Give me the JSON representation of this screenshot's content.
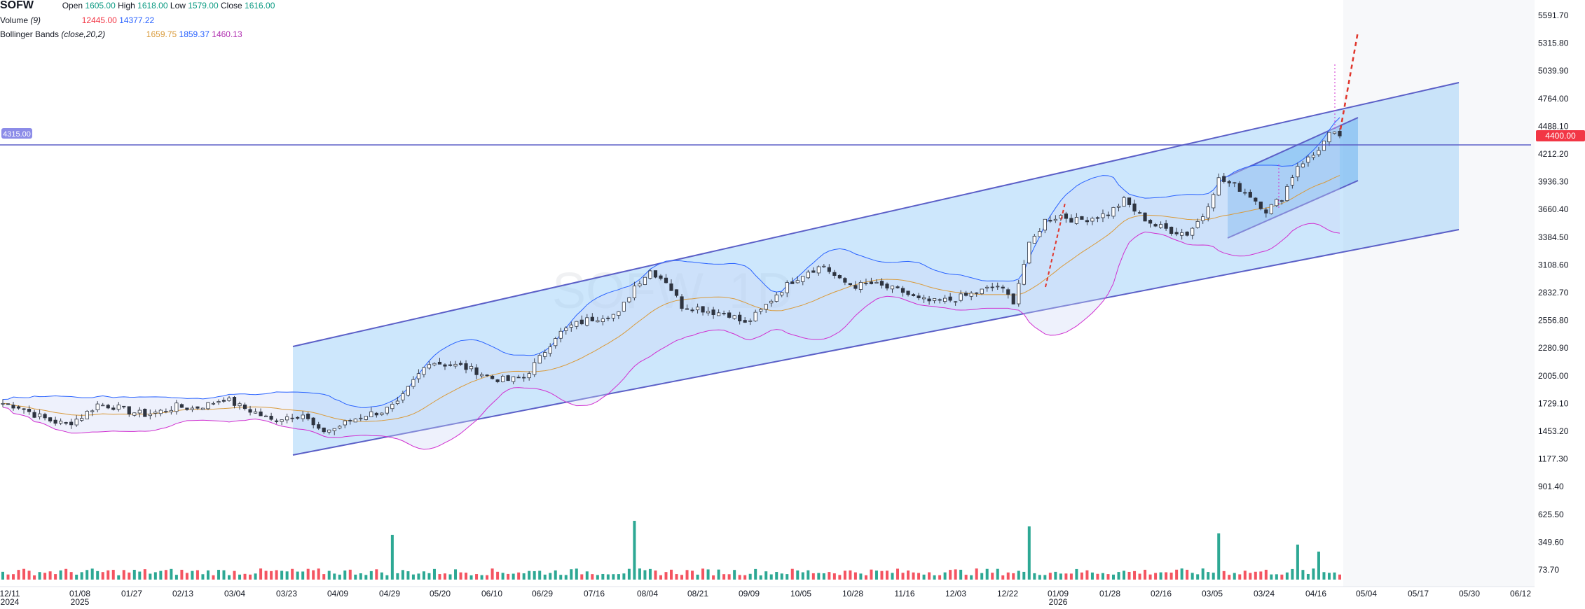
{
  "legend": {
    "symbol": "SOFW",
    "open_label": "Open",
    "open_value": "1605.00",
    "high_label": "High",
    "high_value": "1618.00",
    "low_label": "Low",
    "low_value": "1579.00",
    "close_label": "Close",
    "close_value": "1616.00",
    "volume_label": "Volume",
    "volume_param": "(9)",
    "volume_value": "12445.00",
    "volume_ma": "14377.22",
    "bb_label": "Bollinger Bands",
    "bb_params": "(close,20,2)",
    "bb_basis": "1659.75",
    "bb_upper": "1859.37",
    "bb_lower": "1460.13"
  },
  "watermark": "SOFW, 1D",
  "colors": {
    "up": "#089981",
    "down": "#f23645",
    "channel_fill": "#90caf9",
    "channel_line": "#5b5fc7",
    "bb_upper": "#2962ff",
    "bb_lower": "#d02fd0",
    "bb_basis": "#d99a3a",
    "hline": "#5b5fc7",
    "current_price_badge": "#f23645"
  },
  "horizontal_line": {
    "price_label": "4315.00"
  },
  "current_price": {
    "label": "4400.00"
  },
  "chart_data": {
    "type": "candlestick",
    "y_axis": {
      "ticks": [
        "5591.70",
        "5315.80",
        "5039.90",
        "4764.00",
        "4488.10",
        "4212.20",
        "3936.30",
        "3660.40",
        "3384.50",
        "3108.60",
        "2832.70",
        "2556.80",
        "2280.90",
        "2005.00",
        "1729.10",
        "1453.20",
        "1177.30",
        "901.40",
        "625.50",
        "349.60",
        "73.70"
      ],
      "range": [
        0,
        5700
      ]
    },
    "x_axis": {
      "ticks": [
        {
          "label": "12/11",
          "sub": "2024"
        },
        {
          "label": "01/08",
          "sub": "2025"
        },
        {
          "label": "01/27",
          "sub": ""
        },
        {
          "label": "02/13",
          "sub": ""
        },
        {
          "label": "03/04",
          "sub": ""
        },
        {
          "label": "03/23",
          "sub": ""
        },
        {
          "label": "04/09",
          "sub": ""
        },
        {
          "label": "04/29",
          "sub": ""
        },
        {
          "label": "05/20",
          "sub": ""
        },
        {
          "label": "06/10",
          "sub": ""
        },
        {
          "label": "06/29",
          "sub": ""
        },
        {
          "label": "07/16",
          "sub": ""
        },
        {
          "label": "08/04",
          "sub": ""
        },
        {
          "label": "08/21",
          "sub": ""
        },
        {
          "label": "09/09",
          "sub": ""
        },
        {
          "label": "10/05",
          "sub": ""
        },
        {
          "label": "10/28",
          "sub": ""
        },
        {
          "label": "11/16",
          "sub": ""
        },
        {
          "label": "12/03",
          "sub": ""
        },
        {
          "label": "12/22",
          "sub": ""
        },
        {
          "label": "01/09",
          "sub": "2026"
        },
        {
          "label": "01/28",
          "sub": ""
        },
        {
          "label": "02/16",
          "sub": ""
        },
        {
          "label": "03/05",
          "sub": ""
        },
        {
          "label": "03/24",
          "sub": ""
        },
        {
          "label": "04/16",
          "sub": ""
        },
        {
          "label": "05/04",
          "sub": ""
        },
        {
          "label": "05/17",
          "sub": ""
        },
        {
          "label": "05/30",
          "sub": ""
        },
        {
          "label": "06/12",
          "sub": ""
        }
      ]
    },
    "price_path": [
      [
        0,
        1730
      ],
      [
        3,
        1700
      ],
      [
        6,
        1620
      ],
      [
        9,
        1560
      ],
      [
        12,
        1520
      ],
      [
        15,
        1600
      ],
      [
        18,
        1720
      ],
      [
        21,
        1700
      ],
      [
        24,
        1650
      ],
      [
        27,
        1620
      ],
      [
        30,
        1650
      ],
      [
        33,
        1700
      ],
      [
        36,
        1680
      ],
      [
        39,
        1720
      ],
      [
        42,
        1780
      ],
      [
        45,
        1700
      ],
      [
        48,
        1640
      ],
      [
        51,
        1560
      ],
      [
        54,
        1600
      ],
      [
        57,
        1620
      ],
      [
        60,
        1450
      ],
      [
        63,
        1480
      ],
      [
        66,
        1560
      ],
      [
        69,
        1620
      ],
      [
        72,
        1650
      ],
      [
        75,
        1720
      ],
      [
        78,
        1950
      ],
      [
        81,
        2150
      ],
      [
        84,
        2120
      ],
      [
        87,
        2100
      ],
      [
        90,
        2050
      ],
      [
        93,
        1980
      ],
      [
        96,
        1960
      ],
      [
        99,
        1990
      ],
      [
        102,
        2180
      ],
      [
        105,
        2400
      ],
      [
        108,
        2500
      ],
      [
        111,
        2560
      ],
      [
        114,
        2600
      ],
      [
        117,
        2620
      ],
      [
        120,
        2900
      ],
      [
        123,
        3050
      ],
      [
        126,
        2950
      ],
      [
        129,
        2700
      ],
      [
        132,
        2680
      ],
      [
        135,
        2640
      ],
      [
        138,
        2620
      ],
      [
        141,
        2520
      ],
      [
        144,
        2650
      ],
      [
        147,
        2820
      ],
      [
        150,
        2950
      ],
      [
        153,
        3050
      ],
      [
        156,
        3100
      ],
      [
        159,
        2950
      ],
      [
        162,
        2900
      ],
      [
        165,
        2920
      ],
      [
        168,
        2880
      ],
      [
        171,
        2840
      ],
      [
        174,
        2760
      ],
      [
        177,
        2740
      ],
      [
        180,
        2760
      ],
      [
        183,
        2800
      ],
      [
        186,
        2850
      ],
      [
        189,
        2900
      ],
      [
        192,
        2750
      ],
      [
        195,
        3300
      ],
      [
        198,
        3550
      ],
      [
        201,
        3600
      ],
      [
        204,
        3550
      ],
      [
        207,
        3580
      ],
      [
        210,
        3620
      ],
      [
        213,
        3750
      ],
      [
        216,
        3600
      ],
      [
        219,
        3500
      ],
      [
        222,
        3450
      ],
      [
        225,
        3420
      ],
      [
        228,
        3600
      ],
      [
        231,
        3960
      ],
      [
        234,
        3900
      ],
      [
        237,
        3800
      ],
      [
        240,
        3650
      ],
      [
        243,
        3780
      ],
      [
        246,
        4100
      ],
      [
        249,
        4200
      ],
      [
        252,
        4400
      ],
      [
        254,
        4400
      ]
    ],
    "volume_spikes": [
      [
        74,
        320
      ],
      [
        120,
        420
      ],
      [
        195,
        380
      ],
      [
        231,
        330
      ],
      [
        246,
        250
      ],
      [
        250,
        200
      ]
    ],
    "bollinger": {
      "period": 20,
      "stddev": 2
    },
    "channels": [
      "long ascending channel",
      "short ascending channel"
    ],
    "grid": false,
    "legend_position": "top-left"
  }
}
